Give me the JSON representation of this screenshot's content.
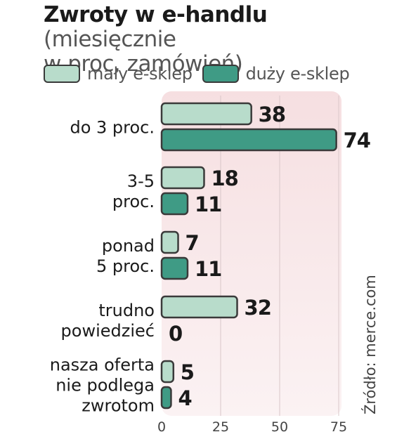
{
  "title": {
    "bold": "Zwroty w e-handlu",
    "rest_line1": " (miesięcznie",
    "rest_line2": "w proc. zamówień)"
  },
  "legend": [
    {
      "label": "mały e-sklep",
      "color": "#b8dccb"
    },
    {
      "label": "duży e-sklep",
      "color": "#3f9b85"
    }
  ],
  "source": "Źródło: merce.com",
  "chart_data": {
    "type": "bar",
    "orientation": "horizontal",
    "categories": [
      [
        "do 3 proc."
      ],
      [
        "3-5",
        "proc."
      ],
      [
        "ponad",
        "5 proc."
      ],
      [
        "trudno",
        "powiedzieć"
      ],
      [
        "nasza oferta",
        "nie podlega",
        "zwrotom"
      ]
    ],
    "series": [
      {
        "name": "mały e-sklep",
        "values": [
          38,
          18,
          7,
          32,
          5
        ],
        "color": "#b8dccb"
      },
      {
        "name": "duży e-sklep",
        "values": [
          74,
          11,
          11,
          0,
          4
        ],
        "color": "#3f9b85"
      }
    ],
    "xlim": [
      0,
      75
    ],
    "xticks": [
      "0",
      "25",
      "50",
      "75"
    ],
    "grid": true,
    "legend_position": "top-left"
  }
}
